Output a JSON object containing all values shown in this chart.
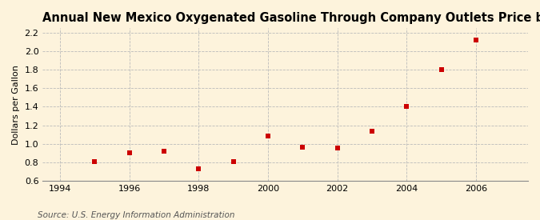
{
  "title": "Annual New Mexico Oxygenated Gasoline Through Company Outlets Price by All Sellers",
  "ylabel": "Dollars per Gallon",
  "source": "Source: U.S. Energy Information Administration",
  "background_color": "#fdf3dc",
  "plot_bg_color": "#fdf3dc",
  "years": [
    1995,
    1996,
    1997,
    1998,
    1999,
    2000,
    2001,
    2002,
    2003,
    2004,
    2005,
    2006
  ],
  "values": [
    0.81,
    0.9,
    0.92,
    0.73,
    0.81,
    1.08,
    0.96,
    0.95,
    1.14,
    1.4,
    1.8,
    2.12
  ],
  "marker_color": "#cc0000",
  "marker": "s",
  "marker_size": 4,
  "xlim": [
    1993.5,
    2007.5
  ],
  "ylim": [
    0.6,
    2.25
  ],
  "yticks": [
    0.6,
    0.8,
    1.0,
    1.2,
    1.4,
    1.6,
    1.8,
    2.0,
    2.2
  ],
  "xticks": [
    1994,
    1996,
    1998,
    2000,
    2002,
    2004,
    2006
  ],
  "grid_color": "#bbbbbb",
  "title_fontsize": 10.5,
  "label_fontsize": 8,
  "tick_fontsize": 8,
  "source_fontsize": 7.5
}
